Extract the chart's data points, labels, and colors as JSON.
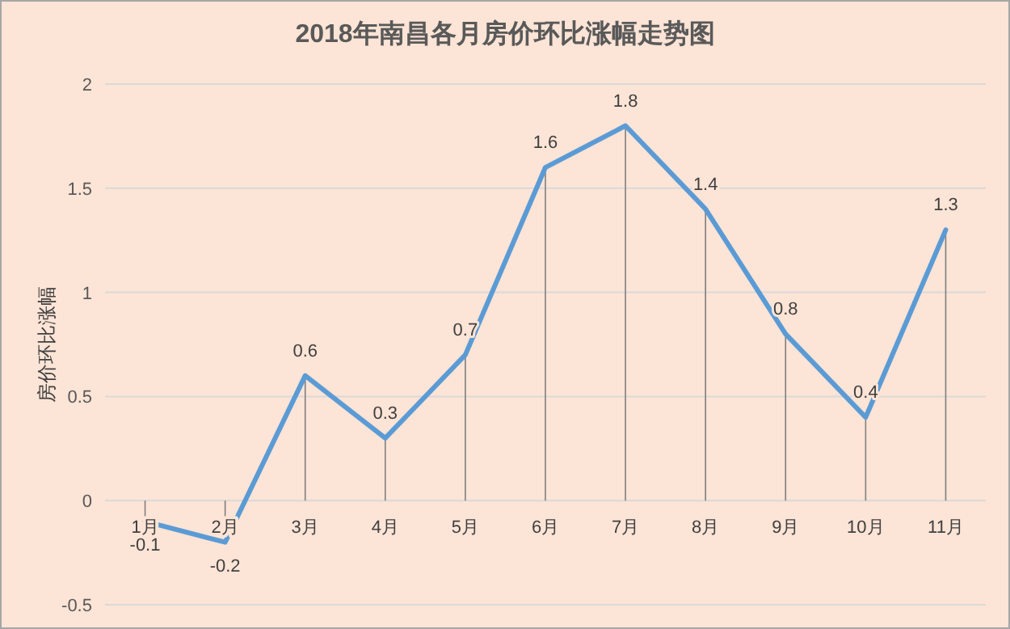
{
  "chart_data": {
    "type": "line",
    "title": "2018年南昌各月房价环比涨幅走势图",
    "ylabel": "房价环比涨幅",
    "categories": [
      "1月",
      "2月",
      "3月",
      "4月",
      "5月",
      "6月",
      "7月",
      "8月",
      "9月",
      "10月",
      "11月"
    ],
    "series": [
      {
        "color": "#5b9bd5",
        "values": [
          -0.1,
          -0.2,
          0.6,
          0.3,
          0.7,
          1.6,
          1.8,
          1.4,
          0.8,
          0.4,
          1.3
        ]
      }
    ],
    "ylim": [
      -0.5,
      2
    ],
    "yticks": [
      -0.5,
      0,
      0.5,
      1,
      1.5,
      2
    ],
    "grid": "y",
    "data_labels": true,
    "marker": "none",
    "line_style": "solid"
  }
}
